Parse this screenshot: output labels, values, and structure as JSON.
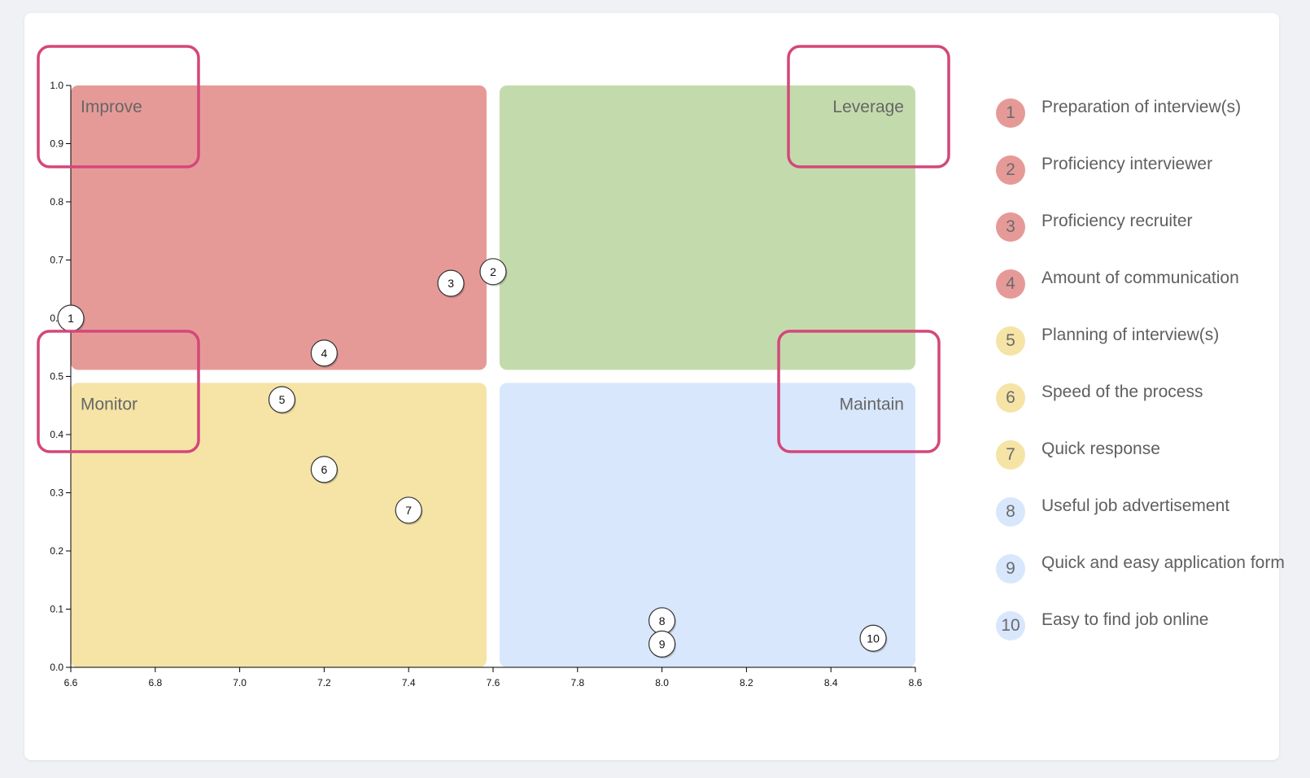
{
  "chart_data": {
    "type": "scatter",
    "xlim": [
      6.6,
      8.6
    ],
    "ylim": [
      0.0,
      1.0
    ],
    "x_ticks": [
      "6.6",
      "6.8",
      "7.0",
      "7.2",
      "7.4",
      "7.6",
      "7.8",
      "8.0",
      "8.2",
      "8.4",
      "8.6"
    ],
    "y_ticks": [
      "0.0",
      "0.1",
      "0.2",
      "0.3",
      "0.4",
      "0.5",
      "0.6",
      "0.7",
      "0.8",
      "0.9",
      "1.0"
    ],
    "x_split": 7.6,
    "y_split": 0.5,
    "quadrants": [
      {
        "label": "Improve",
        "position": "top-left",
        "color": "#e69a98"
      },
      {
        "label": "Leverage",
        "position": "top-right",
        "color": "#c3dbac"
      },
      {
        "label": "Monitor",
        "position": "bottom-left",
        "color": "#f5e4a6"
      },
      {
        "label": "Maintain",
        "position": "bottom-right",
        "color": "#d8e7fc"
      }
    ],
    "points": [
      {
        "id": "1",
        "label": "Preparation of interview(s)",
        "x": 6.6,
        "y": 0.6,
        "color": "#e69a98"
      },
      {
        "id": "2",
        "label": "Proficiency interviewer",
        "x": 7.6,
        "y": 0.68,
        "color": "#e69a98"
      },
      {
        "id": "3",
        "label": "Proficiency recruiter",
        "x": 7.5,
        "y": 0.66,
        "color": "#e69a98"
      },
      {
        "id": "4",
        "label": "Amount of communication",
        "x": 7.2,
        "y": 0.54,
        "color": "#e69a98"
      },
      {
        "id": "5",
        "label": "Planning of interview(s)",
        "x": 7.1,
        "y": 0.46,
        "color": "#f5e4a6"
      },
      {
        "id": "6",
        "label": "Speed of the process",
        "x": 7.2,
        "y": 0.34,
        "color": "#f5e4a6"
      },
      {
        "id": "7",
        "label": "Quick response",
        "x": 7.4,
        "y": 0.27,
        "color": "#f5e4a6"
      },
      {
        "id": "8",
        "label": "Useful job advertisement",
        "x": 8.0,
        "y": 0.08,
        "color": "#d8e7fc"
      },
      {
        "id": "9",
        "label": "Quick and easy application form",
        "x": 8.0,
        "y": 0.04,
        "color": "#d8e7fc"
      },
      {
        "id": "10",
        "label": "Easy to find job online",
        "x": 8.5,
        "y": 0.05,
        "color": "#d8e7fc"
      }
    ],
    "highlight_color": "#d4477a"
  }
}
